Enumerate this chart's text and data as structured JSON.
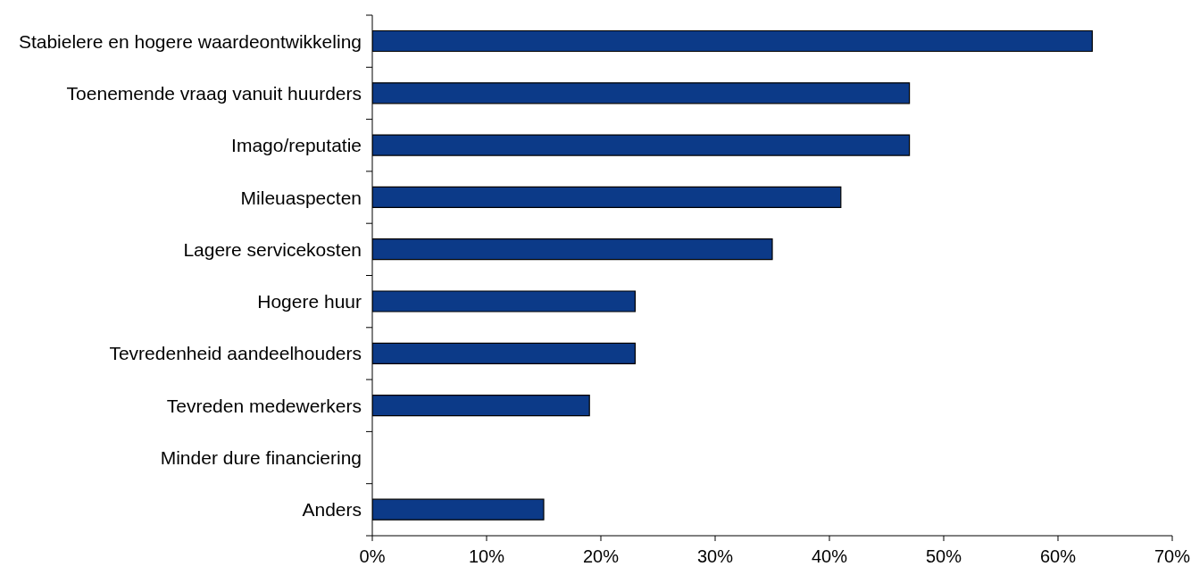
{
  "chart_data": {
    "type": "bar",
    "orientation": "horizontal",
    "categories": [
      "Stabielere en hogere waardeontwikkeling",
      "Toenemende vraag vanuit huurders",
      "Imago/reputatie",
      "Mileuaspecten",
      "Lagere servicekosten",
      "Hogere huur",
      "Tevredenheid aandeelhouders",
      "Tevreden medewerkers",
      "Minder dure financiering",
      "Anders"
    ],
    "values": [
      63,
      47,
      47,
      41,
      35,
      23,
      23,
      19,
      0,
      15
    ],
    "color": "#0c3a88",
    "xlim": [
      0,
      70
    ],
    "xticks": [
      {
        "value": 0,
        "label": "0%"
      },
      {
        "value": 10,
        "label": "10%"
      },
      {
        "value": 20,
        "label": "20%"
      },
      {
        "value": 30,
        "label": "30%"
      },
      {
        "value": 40,
        "label": "40%"
      },
      {
        "value": 50,
        "label": "50%"
      },
      {
        "value": 60,
        "label": "60%"
      },
      {
        "value": 70,
        "label": "70%"
      }
    ]
  }
}
